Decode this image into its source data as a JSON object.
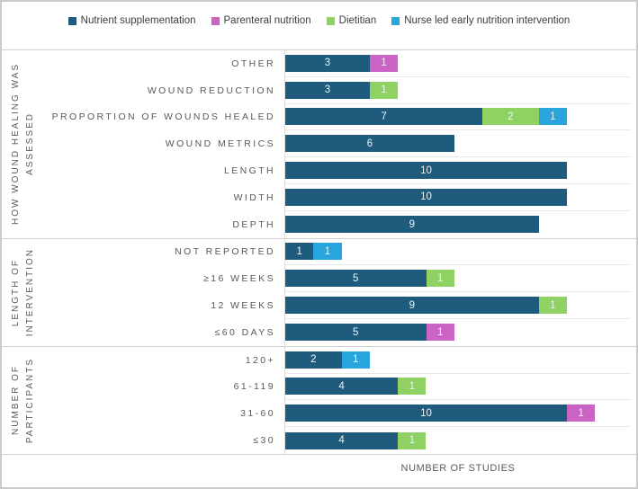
{
  "legend": {
    "items": [
      {
        "series": "Nutrient supplementation",
        "key": "nutrient-supplementation",
        "color": "#1e5b7d"
      },
      {
        "series": "Parenteral nutrition",
        "key": "parenteral-nutrition",
        "color": "#ca63c4"
      },
      {
        "series": "Dietitian",
        "key": "dietitian",
        "color": "#8fd263"
      },
      {
        "series": "Nurse led early nutrition intervention",
        "key": "nurse-led-early-nutrition-intervention",
        "color": "#28a5dc"
      }
    ]
  },
  "chart_data": {
    "type": "bar",
    "orientation": "horizontal",
    "stacked": true,
    "xlabel": "NUMBER OF STUDIES",
    "x_range": [
      0,
      12
    ],
    "grid": "row-separators",
    "legend_position": "top",
    "series": [
      "Nutrient supplementation",
      "Parenteral nutrition",
      "Dietitian",
      "Nurse led early nutrition intervention"
    ],
    "groups": [
      {
        "label": "HOW WOUND HEALING WAS ASSESSED",
        "label_lines": [
          "HOW WOUND HEALING WAS",
          "ASSESSED"
        ],
        "rows": [
          {
            "category": "OTHER",
            "segments": [
              {
                "series": "Nutrient supplementation",
                "value": 3
              },
              {
                "series": "Parenteral nutrition",
                "value": 1
              }
            ]
          },
          {
            "category": "WOUND REDUCTION",
            "segments": [
              {
                "series": "Nutrient supplementation",
                "value": 3
              },
              {
                "series": "Dietitian",
                "value": 1
              }
            ]
          },
          {
            "category": "PROPORTION OF WOUNDS HEALED",
            "segments": [
              {
                "series": "Nutrient supplementation",
                "value": 7
              },
              {
                "series": "Dietitian",
                "value": 2
              },
              {
                "series": "Nurse led early nutrition intervention",
                "value": 1
              }
            ]
          },
          {
            "category": "WOUND METRICS",
            "segments": [
              {
                "series": "Nutrient supplementation",
                "value": 6
              }
            ]
          },
          {
            "category": "LENGTH",
            "segments": [
              {
                "series": "Nutrient supplementation",
                "value": 10
              }
            ]
          },
          {
            "category": "WIDTH",
            "segments": [
              {
                "series": "Nutrient supplementation",
                "value": 10
              }
            ]
          },
          {
            "category": "DEPTH",
            "segments": [
              {
                "series": "Nutrient supplementation",
                "value": 9
              }
            ]
          }
        ]
      },
      {
        "label": "LENGTH OF INTERVENTION",
        "label_lines": [
          "LENGTH OF",
          "INTERVENTION"
        ],
        "rows": [
          {
            "category": "NOT REPORTED",
            "segments": [
              {
                "series": "Nutrient supplementation",
                "value": 1
              },
              {
                "series": "Nurse led early nutrition intervention",
                "value": 1
              }
            ]
          },
          {
            "category": "≥16 WEEKS",
            "segments": [
              {
                "series": "Nutrient supplementation",
                "value": 5
              },
              {
                "series": "Dietitian",
                "value": 1
              }
            ]
          },
          {
            "category": "12 WEEKS",
            "segments": [
              {
                "series": "Nutrient supplementation",
                "value": 9
              },
              {
                "series": "Dietitian",
                "value": 1
              }
            ]
          },
          {
            "category": "≤60 DAYS",
            "segments": [
              {
                "series": "Nutrient supplementation",
                "value": 5
              },
              {
                "series": "Parenteral nutrition",
                "value": 1
              }
            ]
          }
        ]
      },
      {
        "label": "NUMBER OF PARTICIPANTS",
        "label_lines": [
          "NUMBER OF",
          "PARTICIPANTS"
        ],
        "rows": [
          {
            "category": "120+",
            "segments": [
              {
                "series": "Nutrient supplementation",
                "value": 2
              },
              {
                "series": "Nurse led early nutrition intervention",
                "value": 1
              }
            ]
          },
          {
            "category": "61-119",
            "segments": [
              {
                "series": "Nutrient supplementation",
                "value": 4
              },
              {
                "series": "Dietitian",
                "value": 1
              }
            ]
          },
          {
            "category": "31-60",
            "segments": [
              {
                "series": "Nutrient supplementation",
                "value": 10
              },
              {
                "series": "Parenteral nutrition",
                "value": 1
              }
            ]
          },
          {
            "category": "≤30",
            "segments": [
              {
                "series": "Nutrient supplementation",
                "value": 4
              },
              {
                "series": "Dietitian",
                "value": 1
              }
            ]
          }
        ]
      }
    ]
  }
}
